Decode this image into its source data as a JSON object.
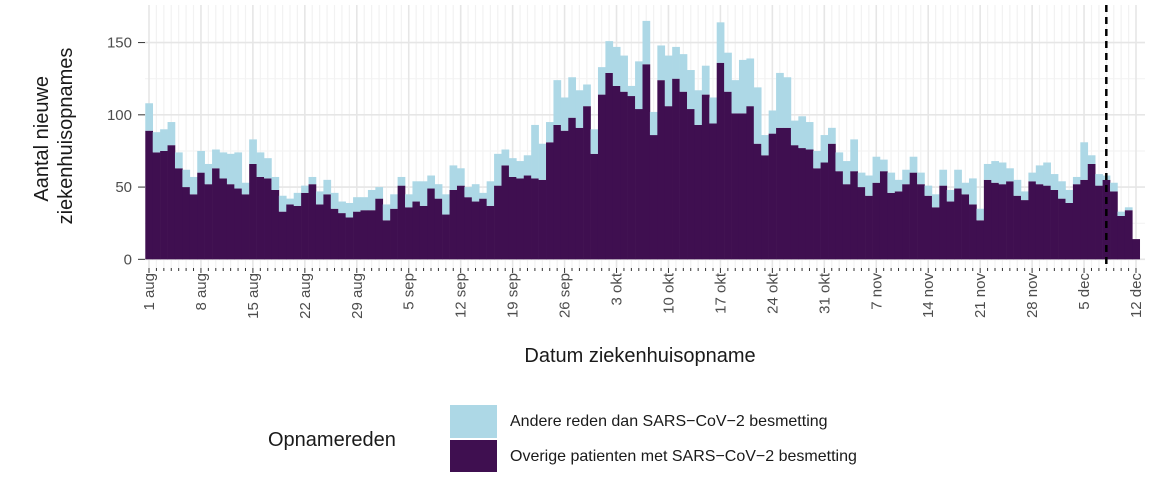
{
  "chart_data": {
    "type": "stacked_bar",
    "y_label": [
      "Aantal nieuwe",
      "ziekenhuisopnames"
    ],
    "x_label": "Datum ziekenhuisopname",
    "legend_title": "Opnamereden",
    "legend_position": "bottom",
    "grid": true,
    "ylim": [
      -6,
      176
    ],
    "yticks": [
      0,
      50,
      100,
      150
    ],
    "vline": 129,
    "categories": [
      "1 aug",
      null,
      null,
      null,
      null,
      null,
      null,
      "8 aug",
      null,
      null,
      null,
      null,
      null,
      null,
      "15 aug",
      null,
      null,
      null,
      null,
      null,
      null,
      "22 aug",
      null,
      null,
      null,
      null,
      null,
      null,
      "29 aug",
      null,
      null,
      null,
      null,
      null,
      null,
      "5 sep",
      null,
      null,
      null,
      null,
      null,
      null,
      "12 sep",
      null,
      null,
      null,
      null,
      null,
      null,
      "19 sep",
      null,
      null,
      null,
      null,
      null,
      null,
      "26 sep",
      null,
      null,
      null,
      null,
      null,
      null,
      "3 okt",
      null,
      null,
      null,
      null,
      null,
      null,
      "10 okt",
      null,
      null,
      null,
      null,
      null,
      null,
      "17 okt",
      null,
      null,
      null,
      null,
      null,
      null,
      "24 okt",
      null,
      null,
      null,
      null,
      null,
      null,
      "31 okt",
      null,
      null,
      null,
      null,
      null,
      null,
      "7 nov",
      null,
      null,
      null,
      null,
      null,
      null,
      "14 nov",
      null,
      null,
      null,
      null,
      null,
      null,
      "21 nov",
      null,
      null,
      null,
      null,
      null,
      null,
      "28 nov",
      null,
      null,
      null,
      null,
      null,
      null,
      "5 dec",
      null,
      null,
      null,
      null,
      null,
      null,
      "12 dec"
    ],
    "series": [
      {
        "name": "Overige patienten met SARS−CoV−2 besmetting",
        "color": "#3f0f50",
        "values": [
          89,
          74,
          75,
          79,
          63,
          50,
          45,
          60,
          52,
          63,
          56,
          52,
          49,
          45,
          66,
          57,
          56,
          48,
          33,
          38,
          37,
          46,
          52,
          38,
          45,
          35,
          32,
          29,
          33,
          34,
          34,
          42,
          27,
          35,
          51,
          36,
          40,
          37,
          49,
          42,
          31,
          48,
          51,
          43,
          40,
          42,
          37,
          51,
          65,
          57,
          56,
          58,
          56,
          55,
          81,
          93,
          89,
          98,
          91,
          106,
          73,
          114,
          129,
          120,
          116,
          113,
          104,
          135,
          86,
          124,
          106,
          125,
          116,
          104,
          93,
          114,
          94,
          136,
          116,
          101,
          101,
          106,
          80,
          72,
          87,
          91,
          91,
          79,
          77,
          76,
          63,
          67,
          80,
          61,
          52,
          61,
          50,
          44,
          53,
          61,
          46,
          47,
          52,
          60,
          52,
          44,
          36,
          51,
          40,
          49,
          45,
          38,
          27,
          55,
          53,
          52,
          54,
          44,
          41,
          54,
          52,
          51,
          48,
          42,
          39,
          52,
          55,
          66,
          51,
          55,
          47,
          30,
          34,
          14
        ]
      },
      {
        "name": "Andere reden dan SARS−CoV−2 besmetting",
        "color": "#add8e6",
        "values": [
          19,
          14,
          15,
          16,
          11,
          12,
          12,
          15,
          14,
          13,
          18,
          21,
          25,
          8,
          17,
          17,
          14,
          9,
          11,
          4,
          9,
          5,
          5,
          9,
          10,
          11,
          8,
          10,
          10,
          9,
          14,
          8,
          11,
          10,
          6,
          9,
          14,
          17,
          9,
          10,
          14,
          17,
          12,
          7,
          12,
          4,
          17,
          22,
          11,
          13,
          12,
          14,
          37,
          25,
          14,
          31,
          23,
          28,
          26,
          15,
          17,
          19,
          22,
          27,
          25,
          7,
          33,
          30,
          16,
          24,
          35,
          22,
          26,
          27,
          24,
          20,
          18,
          28,
          27,
          23,
          37,
          33,
          39,
          14,
          16,
          38,
          35,
          17,
          22,
          19,
          12,
          19,
          11,
          13,
          16,
          22,
          10,
          14,
          18,
          8,
          14,
          8,
          10,
          11,
          8,
          7,
          9,
          11,
          8,
          13,
          8,
          18,
          8,
          11,
          15,
          15,
          9,
          11,
          6,
          6,
          13,
          16,
          11,
          12,
          9,
          5,
          26,
          6,
          8,
          3,
          6,
          3,
          2,
          0
        ]
      }
    ]
  }
}
